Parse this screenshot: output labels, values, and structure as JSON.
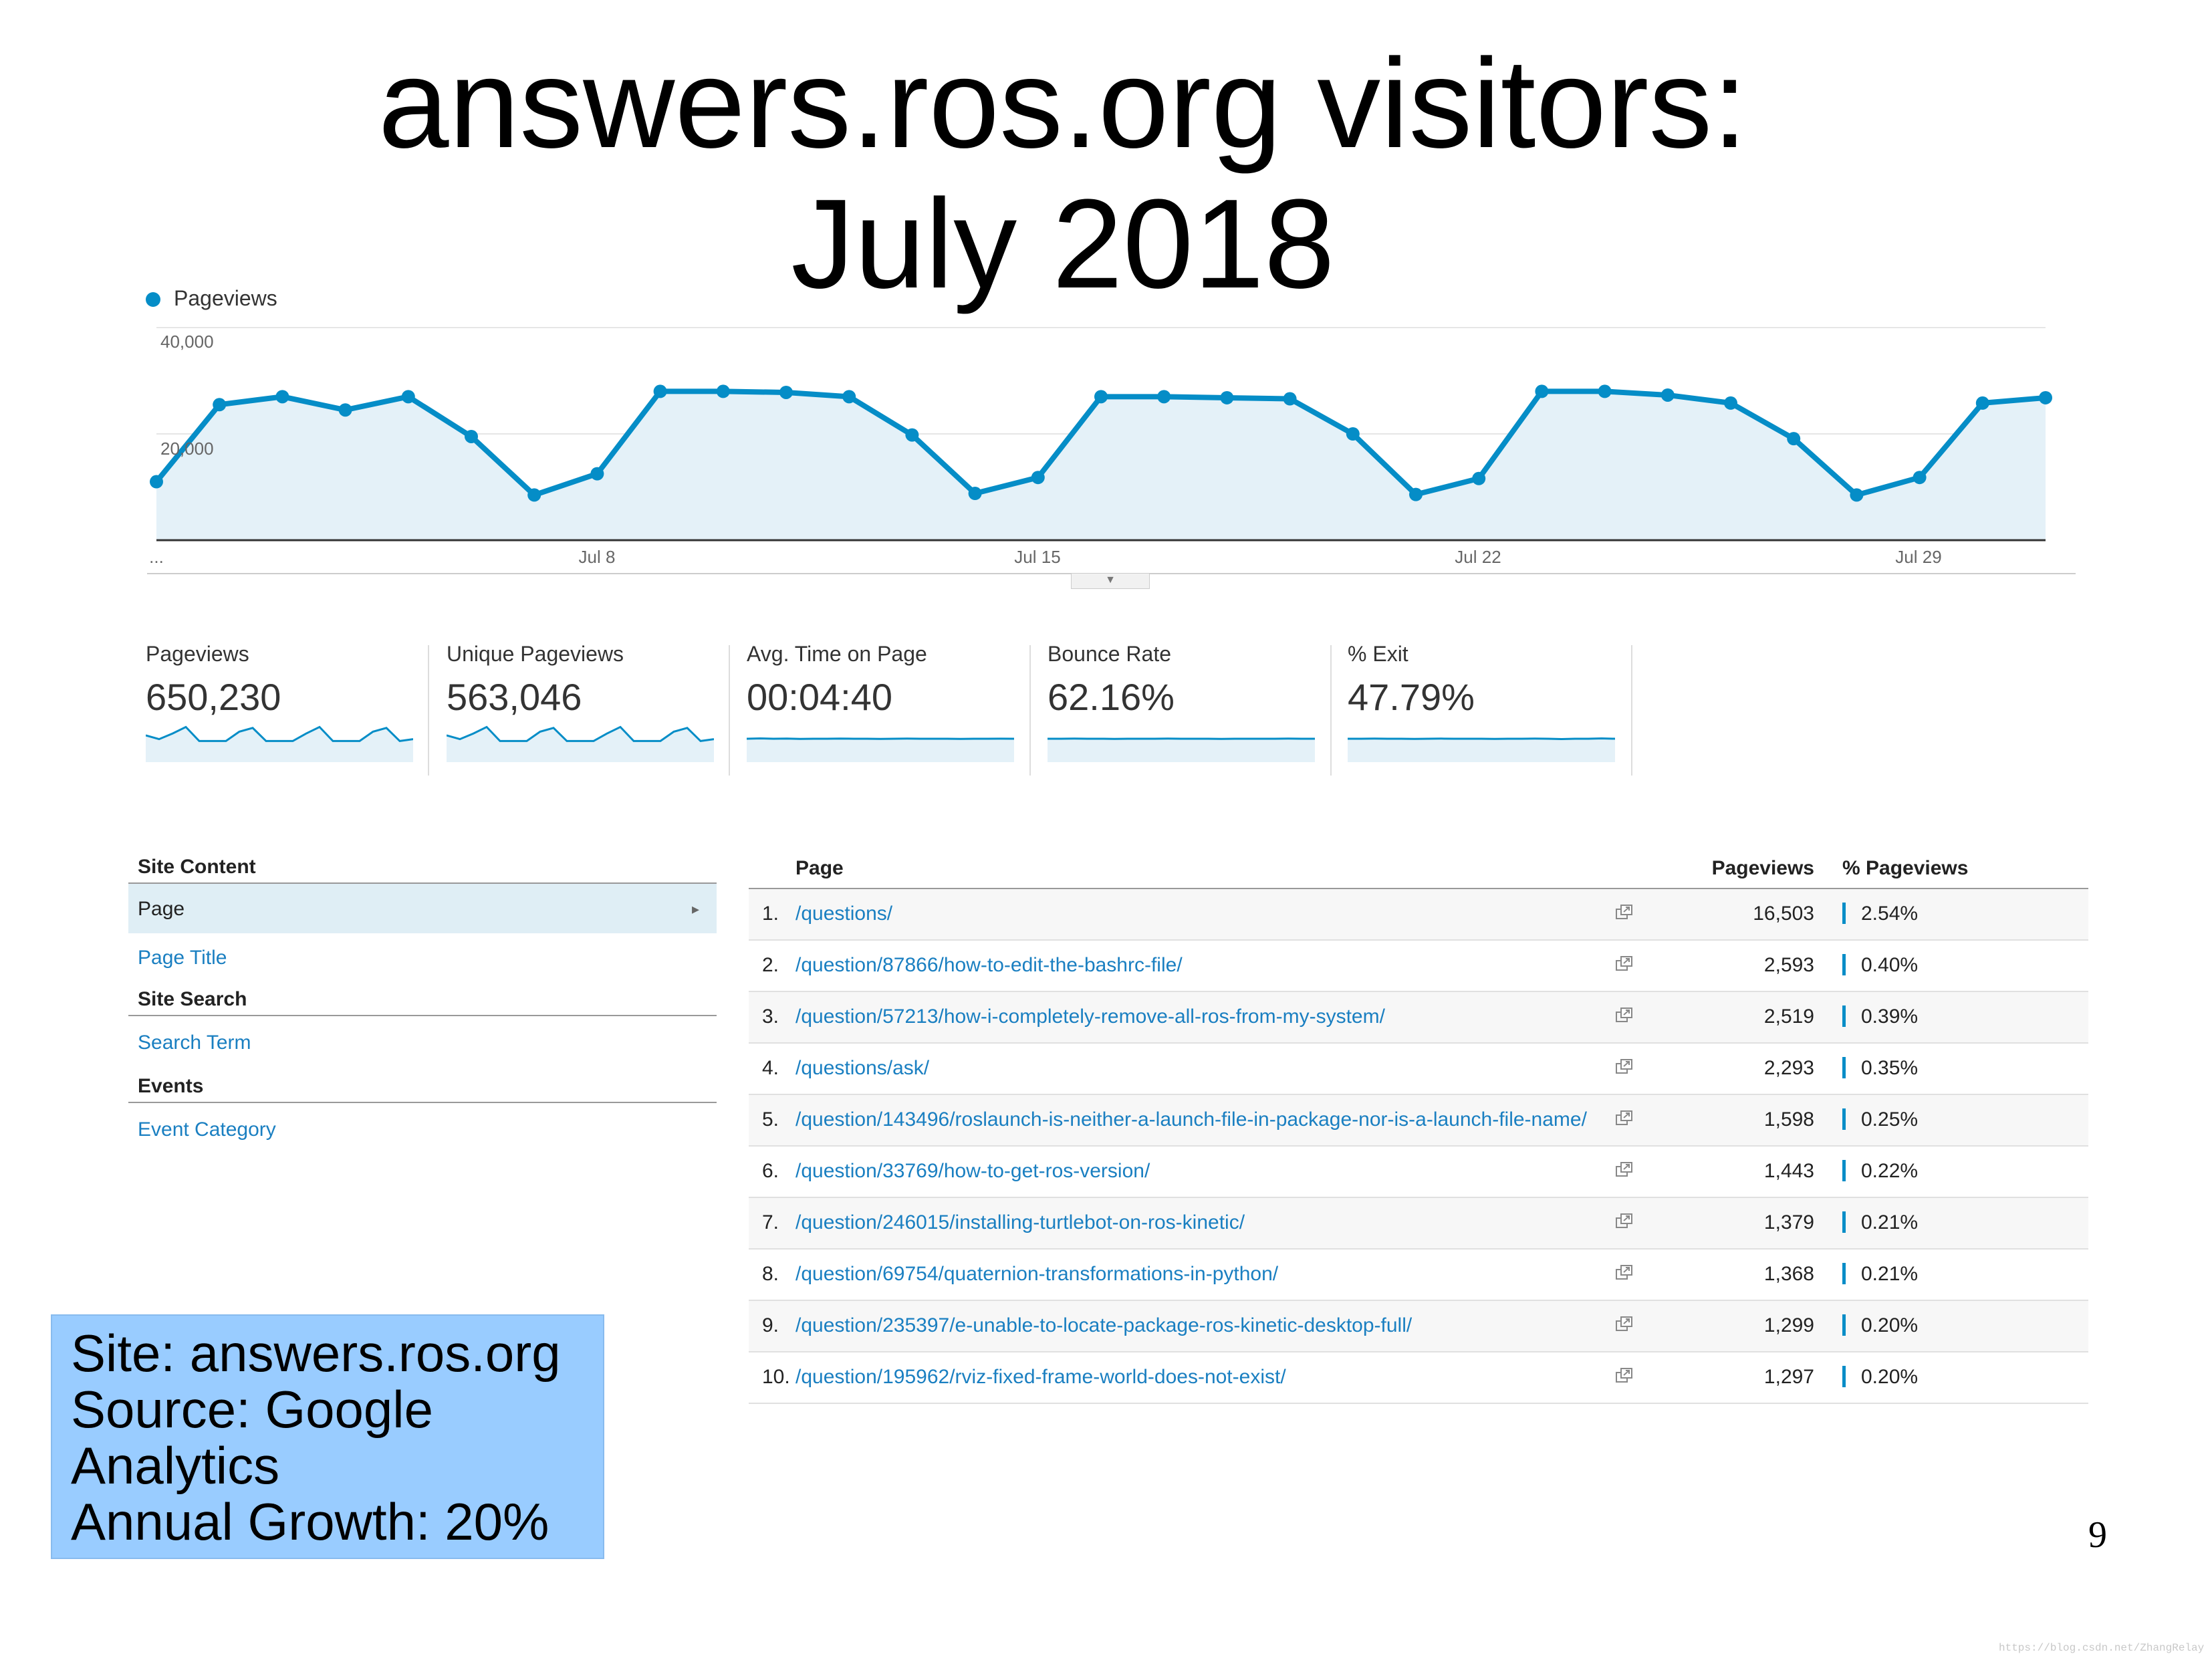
{
  "slide": {
    "title_line1": "answers.ros.org visitors:",
    "title_line2": "July 2018",
    "page_number": "9",
    "watermark": "https://blog.csdn.net/ZhangRelay"
  },
  "chart_data": {
    "type": "area",
    "series": [
      {
        "name": "Pageviews",
        "color": "#058dc7",
        "values": [
          11000,
          25500,
          27000,
          24500,
          27000,
          19500,
          8500,
          12500,
          28000,
          28000,
          27800,
          27000,
          19800,
          8800,
          11800,
          27000,
          27000,
          26800,
          26600,
          20000,
          8600,
          11600,
          28000,
          28000,
          27300,
          25800,
          19100,
          8500,
          11800,
          25800,
          26800
        ]
      }
    ],
    "y_ticks": [
      "40,000",
      "20,000"
    ],
    "ylim": [
      0,
      40000
    ],
    "x_ticks": [
      "...",
      "Jul 8",
      "Jul 15",
      "Jul 22",
      "Jul 29"
    ],
    "grid": true,
    "legend_position": "top-left"
  },
  "metrics": [
    {
      "label": "Pageviews",
      "value": "650,230",
      "spark": [
        0.5,
        0.3,
        0.6,
        0.95,
        0.2,
        0.2,
        0.2,
        0.7,
        0.9,
        0.2,
        0.2,
        0.2,
        0.6,
        0.95,
        0.2,
        0.2,
        0.2,
        0.7,
        0.9,
        0.2,
        0.3
      ],
      "flat": false
    },
    {
      "label": "Unique Pageviews",
      "value": "563,046",
      "spark": [
        0.5,
        0.3,
        0.6,
        0.95,
        0.2,
        0.2,
        0.2,
        0.7,
        0.9,
        0.2,
        0.2,
        0.2,
        0.6,
        0.95,
        0.2,
        0.2,
        0.2,
        0.7,
        0.9,
        0.2,
        0.3
      ],
      "flat": false
    },
    {
      "label": "Avg. Time on Page",
      "value": "00:04:40",
      "spark": [
        0.5,
        0.55,
        0.5,
        0.52,
        0.48,
        0.5,
        0.5,
        0.53,
        0.5,
        0.5,
        0.48,
        0.5,
        0.52,
        0.5,
        0.5,
        0.5,
        0.47,
        0.5,
        0.5,
        0.51,
        0.5
      ],
      "flat": true
    },
    {
      "label": "Bounce Rate",
      "value": "62.16%",
      "spark": [
        0.5,
        0.5,
        0.52,
        0.5,
        0.5,
        0.48,
        0.5,
        0.5,
        0.5,
        0.52,
        0.5,
        0.5,
        0.5,
        0.48,
        0.5,
        0.5,
        0.5,
        0.5,
        0.52,
        0.5,
        0.5
      ],
      "flat": true
    },
    {
      "label": "% Exit",
      "value": "47.79%",
      "spark": [
        0.5,
        0.5,
        0.52,
        0.5,
        0.5,
        0.48,
        0.5,
        0.52,
        0.5,
        0.5,
        0.5,
        0.48,
        0.5,
        0.5,
        0.52,
        0.5,
        0.45,
        0.5,
        0.5,
        0.55,
        0.5
      ],
      "flat": true
    }
  ],
  "nav": {
    "site_content_heading": "Site Content",
    "page_item": "Page",
    "page_title_item": "Page Title",
    "site_search_heading": "Site Search",
    "search_term_item": "Search Term",
    "events_heading": "Events",
    "event_category_item": "Event Category"
  },
  "table": {
    "headers": {
      "page": "Page",
      "pageviews": "Pageviews",
      "pct": "% Pageviews"
    },
    "rows": [
      {
        "idx": "1.",
        "page": "/questions/",
        "pageviews": "16,503",
        "pct": "2.54%"
      },
      {
        "idx": "2.",
        "page": "/question/87866/how-to-edit-the-bashrc-file/",
        "pageviews": "2,593",
        "pct": "0.40%"
      },
      {
        "idx": "3.",
        "page": "/question/57213/how-i-completely-remove-all-ros-from-my-system/",
        "pageviews": "2,519",
        "pct": "0.39%"
      },
      {
        "idx": "4.",
        "page": "/questions/ask/",
        "pageviews": "2,293",
        "pct": "0.35%"
      },
      {
        "idx": "5.",
        "page": "/question/143496/roslaunch-is-neither-a-launch-file-in-package-nor-is-a-launch-file-name/",
        "pageviews": "1,598",
        "pct": "0.25%"
      },
      {
        "idx": "6.",
        "page": "/question/33769/how-to-get-ros-version/",
        "pageviews": "1,443",
        "pct": "0.22%"
      },
      {
        "idx": "7.",
        "page": "/question/246015/installing-turtlebot-on-ros-kinetic/",
        "pageviews": "1,379",
        "pct": "0.21%"
      },
      {
        "idx": "8.",
        "page": "/question/69754/quaternion-transformations-in-python/",
        "pageviews": "1,368",
        "pct": "0.21%"
      },
      {
        "idx": "9.",
        "page": "/question/235397/e-unable-to-locate-package-ros-kinetic-desktop-full/",
        "pageviews": "1,299",
        "pct": "0.20%"
      },
      {
        "idx": "10.",
        "page": "/question/195962/rviz-fixed-frame-world-does-not-exist/",
        "pageviews": "1,297",
        "pct": "0.20%"
      }
    ]
  },
  "info": {
    "line1": "Site: answers.ros.org",
    "line2": "Source: Google",
    "line3": "Analytics",
    "line4": "Annual Growth: 20%"
  },
  "colors": {
    "accent": "#058dc7",
    "link": "#1a7fc1",
    "info_box": "#99ccff"
  }
}
